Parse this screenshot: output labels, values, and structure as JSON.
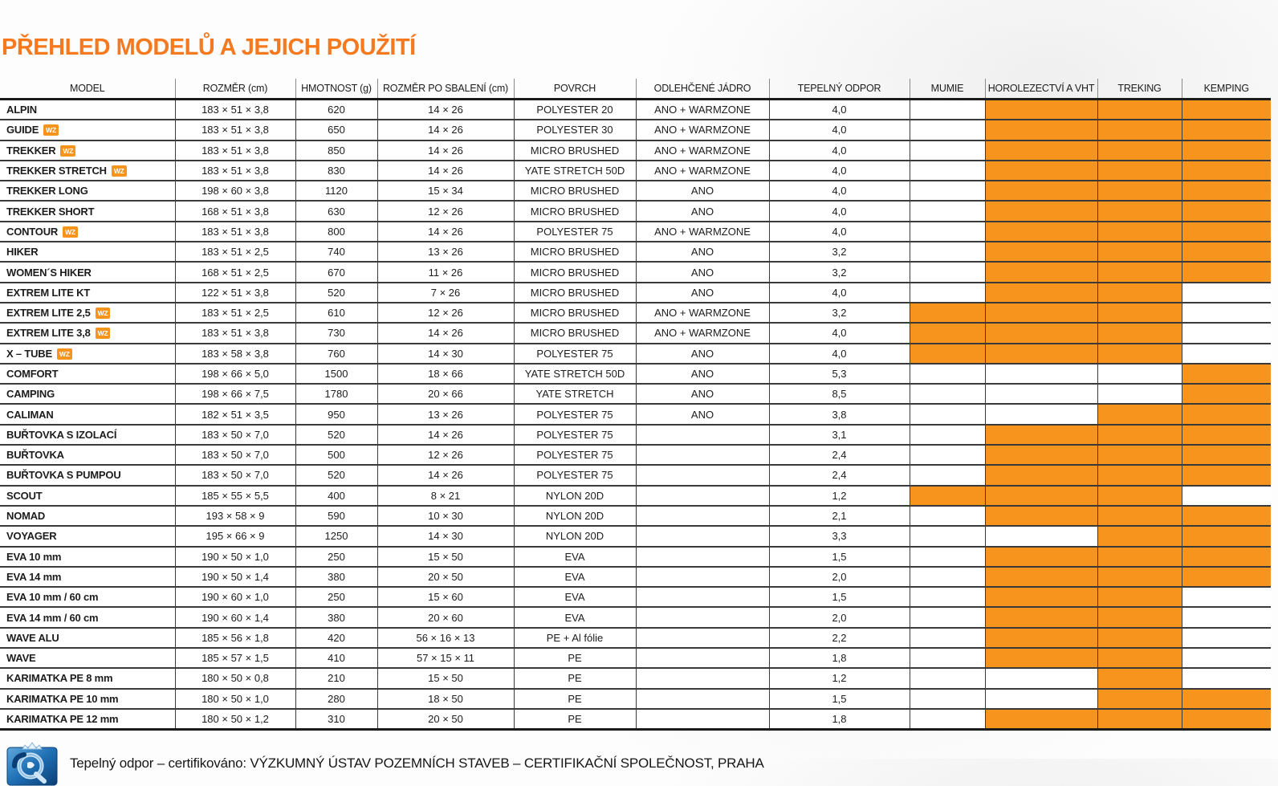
{
  "title": "PŘEHLED MODELŮ A JEJICH POUŽITÍ",
  "colors": {
    "accent_orange": "#F7941E",
    "title_orange": "#F5791F",
    "logo_blue": "#1F6FB4"
  },
  "table": {
    "wz_badge": "WZ",
    "columns": [
      "MODEL",
      "ROZMĚR (cm)",
      "HMOTNOST (g)",
      "ROZMĚR PO SBALENÍ (cm)",
      "POVRCH",
      "ODLEHČENÉ JÁDRO",
      "TEPELNÝ ODPOR",
      "MUMIE",
      "HOROLEZECTVÍ A VHT",
      "TREKING",
      "KEMPING"
    ],
    "rows": [
      {
        "model": "ALPIN",
        "wz": false,
        "rozmer": "183 × 51 × 3,8",
        "hmotnost": "620",
        "sbaleni": "14 × 26",
        "povrch": "POLYESTER 20",
        "jadro": "ANO + WARMZONE",
        "odpor": "4,0",
        "use": [
          false,
          true,
          true,
          true
        ]
      },
      {
        "model": "GUIDE",
        "wz": true,
        "rozmer": "183 × 51 × 3,8",
        "hmotnost": "650",
        "sbaleni": "14 × 26",
        "povrch": "POLYESTER 30",
        "jadro": "ANO + WARMZONE",
        "odpor": "4,0",
        "use": [
          false,
          true,
          true,
          true
        ]
      },
      {
        "model": "TREKKER",
        "wz": true,
        "rozmer": "183 × 51 × 3,8",
        "hmotnost": "850",
        "sbaleni": "14 × 26",
        "povrch": "MICRO BRUSHED",
        "jadro": "ANO + WARMZONE",
        "odpor": "4,0",
        "use": [
          false,
          true,
          true,
          true
        ]
      },
      {
        "model": "TREKKER STRETCH",
        "wz": true,
        "rozmer": "183 × 51 × 3,8",
        "hmotnost": "830",
        "sbaleni": "14 × 26",
        "povrch": "YATE STRETCH 50D",
        "jadro": "ANO + WARMZONE",
        "odpor": "4,0",
        "use": [
          false,
          true,
          true,
          true
        ]
      },
      {
        "model": "TREKKER LONG",
        "wz": false,
        "rozmer": "198 × 60 × 3,8",
        "hmotnost": "1120",
        "sbaleni": "15 × 34",
        "povrch": "MICRO BRUSHED",
        "jadro": "ANO",
        "odpor": "4,0",
        "use": [
          false,
          true,
          true,
          true
        ]
      },
      {
        "model": "TREKKER SHORT",
        "wz": false,
        "rozmer": "168 × 51 × 3,8",
        "hmotnost": "630",
        "sbaleni": "12 × 26",
        "povrch": "MICRO BRUSHED",
        "jadro": "ANO",
        "odpor": "4,0",
        "use": [
          false,
          true,
          true,
          true
        ]
      },
      {
        "model": "CONTOUR",
        "wz": true,
        "rozmer": "183 × 51 × 3,8",
        "hmotnost": "800",
        "sbaleni": "14 × 26",
        "povrch": "POLYESTER 75",
        "jadro": "ANO + WARMZONE",
        "odpor": "4,0",
        "use": [
          false,
          true,
          true,
          true
        ]
      },
      {
        "model": "HIKER",
        "wz": false,
        "rozmer": "183 × 51 × 2,5",
        "hmotnost": "740",
        "sbaleni": "13 × 26",
        "povrch": "MICRO BRUSHED",
        "jadro": "ANO",
        "odpor": "3,2",
        "use": [
          false,
          true,
          true,
          true
        ]
      },
      {
        "model": "WOMEN´S HIKER",
        "wz": false,
        "rozmer": "168 × 51 × 2,5",
        "hmotnost": "670",
        "sbaleni": "11 × 26",
        "povrch": "MICRO BRUSHED",
        "jadro": "ANO",
        "odpor": "3,2",
        "use": [
          false,
          true,
          true,
          true
        ]
      },
      {
        "model": "EXTREM LITE KT",
        "wz": false,
        "rozmer": "122 × 51 × 3,8",
        "hmotnost": "520",
        "sbaleni": "7 × 26",
        "povrch": "MICRO BRUSHED",
        "jadro": "ANO",
        "odpor": "4,0",
        "use": [
          false,
          true,
          true,
          false
        ]
      },
      {
        "model": "EXTREM LITE 2,5",
        "wz": true,
        "rozmer": "183 × 51 × 2,5",
        "hmotnost": "610",
        "sbaleni": "12 × 26",
        "povrch": "MICRO BRUSHED",
        "jadro": "ANO + WARMZONE",
        "odpor": "3,2",
        "use": [
          true,
          true,
          true,
          false
        ]
      },
      {
        "model": "EXTREM LITE 3,8",
        "wz": true,
        "rozmer": "183 × 51 × 3,8",
        "hmotnost": "730",
        "sbaleni": "14 × 26",
        "povrch": "MICRO BRUSHED",
        "jadro": "ANO + WARMZONE",
        "odpor": "4,0",
        "use": [
          true,
          true,
          true,
          false
        ]
      },
      {
        "model": "X – TUBE",
        "wz": true,
        "rozmer": "183 × 58 × 3,8",
        "hmotnost": "760",
        "sbaleni": "14 × 30",
        "povrch": "POLYESTER 75",
        "jadro": "ANO",
        "odpor": "4,0",
        "use": [
          true,
          true,
          true,
          false
        ]
      },
      {
        "model": "COMFORT",
        "wz": false,
        "rozmer": "198 × 66 × 5,0",
        "hmotnost": "1500",
        "sbaleni": "18 × 66",
        "povrch": "YATE STRETCH 50D",
        "jadro": "ANO",
        "odpor": "5,3",
        "use": [
          false,
          false,
          false,
          true
        ]
      },
      {
        "model": "CAMPING",
        "wz": false,
        "rozmer": "198 × 66 × 7,5",
        "hmotnost": "1780",
        "sbaleni": "20 × 66",
        "povrch": "YATE STRETCH",
        "jadro": "ANO",
        "odpor": "8,5",
        "use": [
          false,
          false,
          false,
          true
        ]
      },
      {
        "model": "CALIMAN",
        "wz": false,
        "rozmer": "182 × 51 × 3,5",
        "hmotnost": "950",
        "sbaleni": "13 × 26",
        "povrch": "POLYESTER 75",
        "jadro": "ANO",
        "odpor": "3,8",
        "use": [
          false,
          false,
          true,
          true
        ]
      },
      {
        "model": "BUŘTOVKA S IZOLACÍ",
        "wz": false,
        "rozmer": "183 × 50 × 7,0",
        "hmotnost": "520",
        "sbaleni": "14 × 26",
        "povrch": "POLYESTER 75",
        "jadro": "",
        "odpor": "3,1",
        "use": [
          false,
          true,
          true,
          true
        ]
      },
      {
        "model": "BUŘTOVKA",
        "wz": false,
        "rozmer": "183 × 50 × 7,0",
        "hmotnost": "500",
        "sbaleni": "12 × 26",
        "povrch": "POLYESTER 75",
        "jadro": "",
        "odpor": "2,4",
        "use": [
          false,
          true,
          true,
          true
        ]
      },
      {
        "model": "BUŘTOVKA S PUMPOU",
        "wz": false,
        "rozmer": "183 × 50 × 7,0",
        "hmotnost": "520",
        "sbaleni": "14 × 26",
        "povrch": "POLYESTER 75",
        "jadro": "",
        "odpor": "2,4",
        "use": [
          false,
          true,
          true,
          true
        ]
      },
      {
        "model": "SCOUT",
        "wz": false,
        "rozmer": "185 × 55 × 5,5",
        "hmotnost": "400",
        "sbaleni": "8 × 21",
        "povrch": "NYLON 20D",
        "jadro": "",
        "odpor": "1,2",
        "use": [
          true,
          true,
          true,
          false
        ]
      },
      {
        "model": "NOMAD",
        "wz": false,
        "rozmer": "193 × 58 × 9",
        "hmotnost": "590",
        "sbaleni": "10 × 30",
        "povrch": "NYLON 20D",
        "jadro": "",
        "odpor": "2,1",
        "use": [
          false,
          true,
          true,
          true
        ]
      },
      {
        "model": "VOYAGER",
        "wz": false,
        "rozmer": "195 × 66 × 9",
        "hmotnost": "1250",
        "sbaleni": "14 × 30",
        "povrch": "NYLON 20D",
        "jadro": "",
        "odpor": "3,3",
        "use": [
          false,
          false,
          true,
          true
        ]
      },
      {
        "model": "EVA 10 mm",
        "wz": false,
        "rozmer": "190 × 50 × 1,0",
        "hmotnost": "250",
        "sbaleni": "15 × 50",
        "povrch": "EVA",
        "jadro": "",
        "odpor": "1,5",
        "use": [
          false,
          true,
          true,
          true
        ]
      },
      {
        "model": "EVA 14 mm",
        "wz": false,
        "rozmer": "190 × 50 × 1,4",
        "hmotnost": "380",
        "sbaleni": "20 × 50",
        "povrch": "EVA",
        "jadro": "",
        "odpor": "2,0",
        "use": [
          false,
          true,
          true,
          true
        ]
      },
      {
        "model": "EVA 10 mm / 60 cm",
        "wz": false,
        "rozmer": "190 × 60 × 1,0",
        "hmotnost": "250",
        "sbaleni": "15 × 60",
        "povrch": "EVA",
        "jadro": "",
        "odpor": "1,5",
        "use": [
          false,
          true,
          true,
          false
        ]
      },
      {
        "model": "EVA 14 mm / 60 cm",
        "wz": false,
        "rozmer": "190 × 60 × 1,4",
        "hmotnost": "380",
        "sbaleni": "20 × 60",
        "povrch": "EVA",
        "jadro": "",
        "odpor": "2,0",
        "use": [
          false,
          true,
          true,
          false
        ]
      },
      {
        "model": "WAVE ALU",
        "wz": false,
        "rozmer": "185 × 56 × 1,8",
        "hmotnost": "420",
        "sbaleni": "56 × 16 × 13",
        "povrch": "PE + Al fólie",
        "jadro": "",
        "odpor": "2,2",
        "use": [
          false,
          true,
          true,
          false
        ]
      },
      {
        "model": "WAVE",
        "wz": false,
        "rozmer": "185 × 57 × 1,5",
        "hmotnost": "410",
        "sbaleni": "57 × 15 × 11",
        "povrch": "PE",
        "jadro": "",
        "odpor": "1,8",
        "use": [
          false,
          true,
          true,
          false
        ]
      },
      {
        "model": "KARIMATKA PE 8 mm",
        "wz": false,
        "rozmer": "180 × 50 × 0,8",
        "hmotnost": "210",
        "sbaleni": "15 × 50",
        "povrch": "PE",
        "jadro": "",
        "odpor": "1,2",
        "use": [
          false,
          false,
          true,
          false
        ]
      },
      {
        "model": "KARIMATKA PE 10 mm",
        "wz": false,
        "rozmer": "180 × 50 × 1,0",
        "hmotnost": "280",
        "sbaleni": "18 × 50",
        "povrch": "PE",
        "jadro": "",
        "odpor": "1,5",
        "use": [
          false,
          false,
          true,
          true
        ]
      },
      {
        "model": "KARIMATKA PE 12 mm",
        "wz": false,
        "rozmer": "180 × 50 × 1,2",
        "hmotnost": "310",
        "sbaleni": "20 × 50",
        "povrch": "PE",
        "jadro": "",
        "odpor": "1,8",
        "use": [
          false,
          true,
          true,
          true
        ]
      }
    ]
  },
  "footer": {
    "note": "Tepelný odpor – certifikováno: VÝZKUMNÝ ÚSTAV POZEMNÍCH STAVEB – CERTIFIKAČNÍ SPOLEČNOST, PRAHA"
  }
}
